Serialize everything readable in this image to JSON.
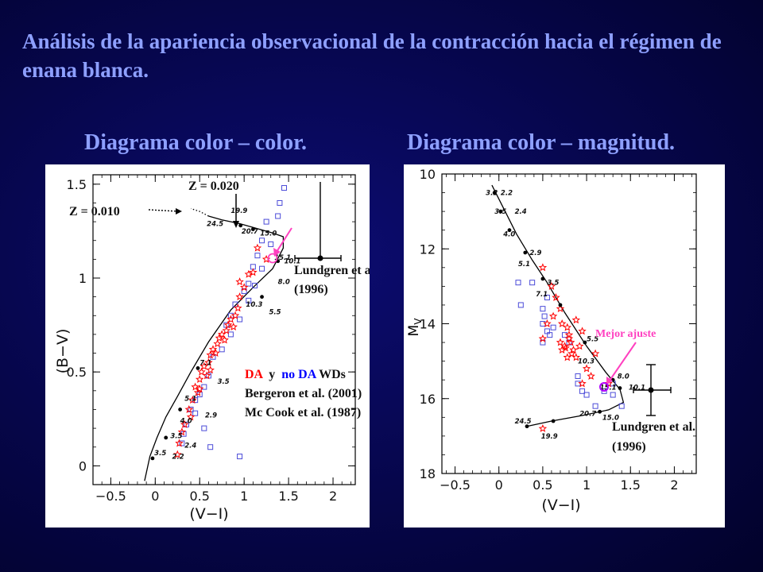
{
  "title": "Análisis de la apariencia observacional  de la contracción hacia el régimen de  enana blanca.",
  "subtitles": {
    "left": "Diagrama color – color.",
    "right": "Diagrama color – magnitud."
  },
  "colors": {
    "background": "#06064a",
    "title_text": "#8ea0ff",
    "DA_stars": "#ff0000",
    "nonDA_squares": "#4b4bd8",
    "arrow": "#ff40c0",
    "mejor_ajuste_text": "#ff40c0"
  },
  "chart_data": [
    {
      "type": "scatter",
      "xlabel": "(V−I)",
      "ylabel": "(B−V)",
      "xlim": [
        -0.7,
        2.25
      ],
      "ylim": [
        -0.1,
        1.55
      ],
      "x_ticks": [
        "−0.5",
        "0",
        "0.5",
        "1",
        "1.5",
        "2"
      ],
      "y_ticks": [
        "1.5",
        "1",
        "0.5",
        "0"
      ],
      "annotations": {
        "z010": "Z = 0.010",
        "z020": "Z = 0.020",
        "lundgren_1": "Lundgren et al.",
        "lundgren_2": "(1996)",
        "legend_DA": "DA",
        "legend_y": "  y  ",
        "legend_noDA": "no DA",
        "legend_WDs": " WDs",
        "ref1": "Bergeron et al. (2001)",
        "ref2": "Mc Cook et al. (1987)"
      },
      "track_points": [
        {
          "label": "19.9",
          "x": 0.85,
          "y": 1.36
        },
        {
          "label": "24.5",
          "x": 0.58,
          "y": 1.29
        },
        {
          "label": "20.7",
          "x": 0.97,
          "y": 1.25
        },
        {
          "label": "15.0",
          "x": 1.18,
          "y": 1.24
        },
        {
          "label": "15.1",
          "x": 1.34,
          "y": 1.11
        },
        {
          "label": "10.1",
          "x": 1.45,
          "y": 1.09
        },
        {
          "label": "8.0",
          "x": 1.38,
          "y": 0.98
        },
        {
          "label": "10.3",
          "x": 1.02,
          "y": 0.86
        },
        {
          "label": "5.5",
          "x": 1.28,
          "y": 0.82
        },
        {
          "label": "7.1",
          "x": 0.5,
          "y": 0.55
        },
        {
          "label": "3.5",
          "x": 0.7,
          "y": 0.45
        },
        {
          "label": "5.1",
          "x": 0.33,
          "y": 0.36
        },
        {
          "label": "2.9",
          "x": 0.56,
          "y": 0.27
        },
        {
          "label": "4.0",
          "x": 0.28,
          "y": 0.24
        },
        {
          "label": "3.5",
          "x": 0.17,
          "y": 0.16
        },
        {
          "label": "2.4",
          "x": 0.33,
          "y": 0.11
        },
        {
          "label": "3.5",
          "x": -0.01,
          "y": 0.07
        },
        {
          "label": "2.2",
          "x": 0.19,
          "y": 0.05
        }
      ],
      "DA": [
        [
          0.42,
          0.35
        ],
        [
          0.45,
          0.42
        ],
        [
          0.5,
          0.46
        ],
        [
          0.52,
          0.5
        ],
        [
          0.55,
          0.53
        ],
        [
          0.6,
          0.55
        ],
        [
          0.62,
          0.59
        ],
        [
          0.65,
          0.62
        ],
        [
          0.7,
          0.65
        ],
        [
          0.72,
          0.68
        ],
        [
          0.75,
          0.7
        ],
        [
          0.8,
          0.72
        ],
        [
          0.82,
          0.75
        ],
        [
          0.85,
          0.78
        ],
        [
          0.9,
          0.8
        ],
        [
          0.38,
          0.3
        ],
        [
          0.33,
          0.22
        ],
        [
          0.3,
          0.18
        ],
        [
          0.27,
          0.12
        ],
        [
          0.25,
          0.06
        ],
        [
          0.48,
          0.39
        ],
        [
          0.58,
          0.48
        ],
        [
          0.68,
          0.6
        ],
        [
          0.78,
          0.67
        ],
        [
          0.88,
          0.74
        ],
        [
          0.93,
          0.84
        ],
        [
          0.95,
          0.9
        ],
        [
          1.0,
          0.95
        ],
        [
          1.05,
          1.02
        ],
        [
          1.1,
          1.03
        ],
        [
          1.15,
          1.16
        ],
        [
          0.95,
          0.98
        ],
        [
          1.25,
          1.1
        ],
        [
          0.4,
          0.26
        ],
        [
          0.5,
          0.41
        ],
        [
          0.62,
          0.51
        ]
      ],
      "nonDA": [
        [
          1.45,
          1.48
        ],
        [
          1.4,
          1.4
        ],
        [
          1.38,
          1.33
        ],
        [
          1.25,
          1.3
        ],
        [
          1.3,
          1.18
        ],
        [
          1.2,
          1.2
        ],
        [
          1.15,
          1.12
        ],
        [
          1.1,
          1.06
        ],
        [
          1.05,
          0.97
        ],
        [
          1.12,
          0.96
        ],
        [
          1.0,
          0.93
        ],
        [
          0.9,
          0.86
        ],
        [
          0.85,
          0.8
        ],
        [
          0.8,
          0.75
        ],
        [
          0.75,
          0.62
        ],
        [
          0.65,
          0.58
        ],
        [
          0.6,
          0.48
        ],
        [
          0.55,
          0.42
        ],
        [
          0.45,
          0.35
        ],
        [
          0.4,
          0.3
        ],
        [
          0.35,
          0.22
        ],
        [
          0.32,
          0.17
        ],
        [
          0.3,
          0.12
        ],
        [
          0.55,
          0.2
        ],
        [
          0.62,
          0.1
        ],
        [
          0.85,
          0.7
        ],
        [
          0.95,
          0.78
        ],
        [
          1.05,
          0.88
        ],
        [
          1.2,
          1.05
        ],
        [
          0.95,
          0.05
        ],
        [
          0.45,
          0.28
        ],
        [
          0.5,
          0.38
        ]
      ]
    },
    {
      "type": "scatter",
      "xlabel": "(V−I)",
      "ylabel": "MV",
      "xlim": [
        -0.65,
        2.25
      ],
      "ylim": [
        18,
        10
      ],
      "x_ticks": [
        "−0.5",
        "0",
        "0.5",
        "1",
        "1.5",
        "2"
      ],
      "y_ticks": [
        "10",
        "12",
        "14",
        "16",
        "18"
      ],
      "annotations": {
        "mejor_ajuste": "Mejor ajuste",
        "lundgren_1": "Lundgren et al.",
        "lundgren_2": "(1996)"
      },
      "track_points": [
        {
          "label": "3.2",
          "x": -0.15,
          "y": 10.5
        },
        {
          "label": "2.2",
          "x": 0.02,
          "y": 10.5
        },
        {
          "label": "3.5",
          "x": -0.05,
          "y": 11.0
        },
        {
          "label": "2.4",
          "x": 0.18,
          "y": 11.0
        },
        {
          "label": "4.0",
          "x": 0.05,
          "y": 11.6
        },
        {
          "label": "2.9",
          "x": 0.35,
          "y": 12.1
        },
        {
          "label": "5.1",
          "x": 0.22,
          "y": 12.4
        },
        {
          "label": "3.5",
          "x": 0.55,
          "y": 12.9
        },
        {
          "label": "7.1",
          "x": 0.42,
          "y": 13.2
        },
        {
          "label": "5.5",
          "x": 1.0,
          "y": 14.4
        },
        {
          "label": "10.3",
          "x": 0.9,
          "y": 15.0
        },
        {
          "label": "8.0",
          "x": 1.35,
          "y": 15.4
        },
        {
          "label": "15.1",
          "x": 1.15,
          "y": 15.7
        },
        {
          "label": "10.1",
          "x": 1.48,
          "y": 15.7
        },
        {
          "label": "20.7",
          "x": 0.92,
          "y": 16.4
        },
        {
          "label": "15.0",
          "x": 1.18,
          "y": 16.5
        },
        {
          "label": "24.5",
          "x": 0.18,
          "y": 16.6
        },
        {
          "label": "19.9",
          "x": 0.48,
          "y": 17.0
        }
      ],
      "DA": [
        [
          0.5,
          12.5
        ],
        [
          0.6,
          13.0
        ],
        [
          0.65,
          13.3
        ],
        [
          0.7,
          13.6
        ],
        [
          0.72,
          14.0
        ],
        [
          0.78,
          14.1
        ],
        [
          0.8,
          14.3
        ],
        [
          0.82,
          14.5
        ],
        [
          0.85,
          14.7
        ],
        [
          0.75,
          14.6
        ],
        [
          0.78,
          14.9
        ],
        [
          0.88,
          14.9
        ],
        [
          0.92,
          14.6
        ],
        [
          0.95,
          14.2
        ],
        [
          0.7,
          14.5
        ],
        [
          0.72,
          14.7
        ],
        [
          0.83,
          14.8
        ],
        [
          0.55,
          14.0
        ],
        [
          0.5,
          14.4
        ],
        [
          0.62,
          13.8
        ],
        [
          1.0,
          15.2
        ],
        [
          1.05,
          15.4
        ],
        [
          0.95,
          15.6
        ],
        [
          1.25,
          15.6
        ],
        [
          1.1,
          14.8
        ],
        [
          0.5,
          16.8
        ],
        [
          0.8,
          14.4
        ],
        [
          0.88,
          13.9
        ],
        [
          0.76,
          14.65
        ]
      ],
      "nonDA": [
        [
          0.22,
          12.9
        ],
        [
          0.38,
          12.9
        ],
        [
          0.25,
          13.5
        ],
        [
          0.55,
          13.3
        ],
        [
          0.5,
          13.6
        ],
        [
          0.52,
          13.8
        ],
        [
          0.5,
          14.0
        ],
        [
          0.55,
          14.2
        ],
        [
          0.5,
          14.5
        ],
        [
          0.58,
          14.3
        ],
        [
          0.62,
          14.1
        ],
        [
          0.75,
          14.3
        ],
        [
          0.9,
          15.6
        ],
        [
          0.95,
          15.8
        ],
        [
          1.0,
          15.9
        ],
        [
          1.2,
          15.8
        ],
        [
          1.3,
          15.6
        ],
        [
          1.4,
          16.2
        ],
        [
          1.3,
          15.9
        ],
        [
          1.1,
          16.2
        ],
        [
          0.9,
          15.4
        ],
        [
          0.8,
          14.5
        ]
      ]
    }
  ]
}
